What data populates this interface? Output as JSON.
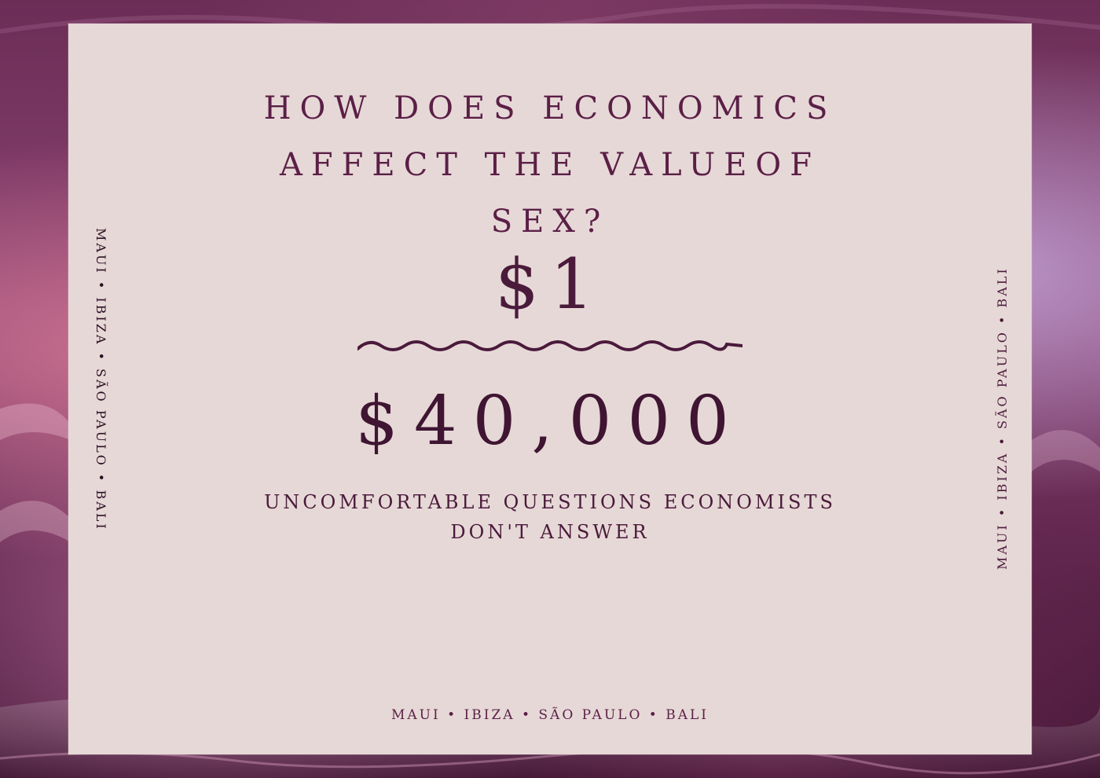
{
  "poster": {
    "headline_lines": [
      "HOW DOES ECONOMICS",
      "AFFECT THE VALUEOF",
      "SEX?"
    ],
    "price_low": "$1",
    "price_high": "$40,000",
    "subline_lines": [
      "UNCOMFORTABLE QUESTIONS ECONOMISTS",
      "DON'T ANSWER"
    ],
    "cities_footer": "MAUI • IBIZA • SÃO PAULO • BALI",
    "cities_left": "MAUI • IBIZA • SÃO PAULO • BALI",
    "cities_right": "MAUI • IBIZA • SÃO PAULO • BALI"
  },
  "colors": {
    "card_background": "#e6d8d6",
    "text_primary": "#5b1f47",
    "text_dark": "#3f1533",
    "background_accent": "#8a4372"
  },
  "icons": {
    "wave_divider": "wavy-line-icon"
  }
}
